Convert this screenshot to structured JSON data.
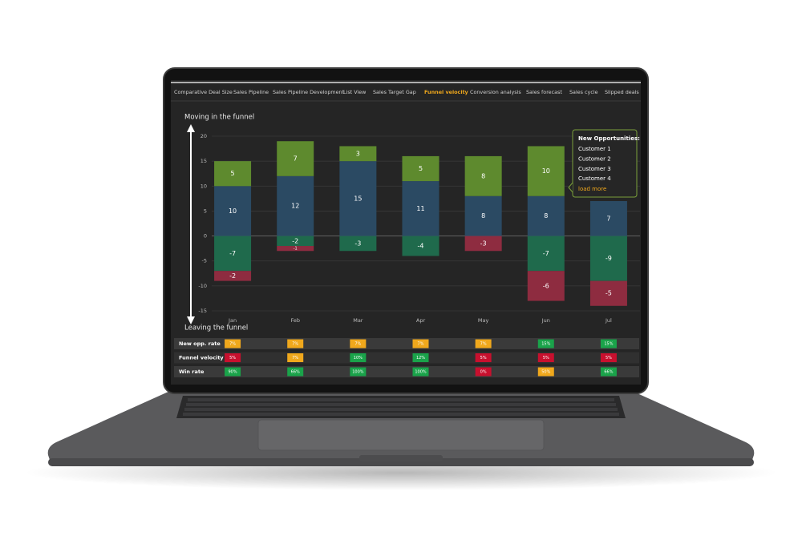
{
  "tabs": {
    "items": [
      "Comparative Deal Size",
      "Sales Pipeline",
      "Sales Pipeline Development",
      "List View",
      "Sales Target Gap",
      "Funnel velocity",
      "Conversion analysis",
      "Sales forecast",
      "Sales cycle",
      "Slipped deals"
    ],
    "active": 5,
    "active_color": "#f0a81c"
  },
  "chart_data": {
    "type": "bar",
    "stacked": true,
    "top_label": "Moving in the funnel",
    "bottom_label": "Leaving the funnel",
    "categories": [
      "Jan",
      "Feb",
      "Mar",
      "Apr",
      "May",
      "Jun",
      "Jul"
    ],
    "series": [
      {
        "color": "#2b4a63",
        "values": [
          10,
          12,
          15,
          11,
          8,
          8,
          7
        ]
      },
      {
        "color": "#5e8a2e",
        "values": [
          5,
          7,
          3,
          5,
          8,
          10,
          null
        ]
      },
      {
        "color": "#1f6a4c",
        "values": [
          -7,
          -2,
          -3,
          -4,
          null,
          -7,
          -9
        ]
      },
      {
        "color": "#8e2c40",
        "values": [
          -2,
          -1,
          null,
          null,
          -3,
          -6,
          -5
        ]
      }
    ],
    "ylim": [
      -15,
      20
    ],
    "yticks": [
      -15,
      -10,
      -5,
      0,
      5,
      10,
      15,
      20
    ],
    "grid": true
  },
  "tooltip": {
    "title": "New Opportunities:",
    "items": [
      "Customer 1",
      "Customer 2",
      "Customer 3",
      "Customer 4"
    ],
    "link": "load more"
  },
  "table": {
    "rows": [
      {
        "label": "New opp. rate",
        "cells": [
          "7%",
          "7%",
          "7%",
          "7%",
          "7%",
          "15%",
          "15%"
        ],
        "colors": [
          "#f0a81c",
          "#f0a81c",
          "#f0a81c",
          "#f0a81c",
          "#f0a81c",
          "#1aa34a",
          "#1aa34a"
        ]
      },
      {
        "label": "Funnel velocity",
        "cells": [
          "5%",
          "7%",
          "10%",
          "12%",
          "5%",
          "5%",
          "5%"
        ],
        "colors": [
          "#c8102e",
          "#f0a81c",
          "#1aa34a",
          "#1aa34a",
          "#c8102e",
          "#c8102e",
          "#c8102e"
        ]
      },
      {
        "label": "Win rate",
        "cells": [
          "90%",
          "66%",
          "100%",
          "100%",
          "0%",
          "50%",
          "66%"
        ],
        "colors": [
          "#1aa34a",
          "#1aa34a",
          "#1aa34a",
          "#1aa34a",
          "#c8102e",
          "#f0a81c",
          "#1aa34a"
        ]
      }
    ]
  }
}
